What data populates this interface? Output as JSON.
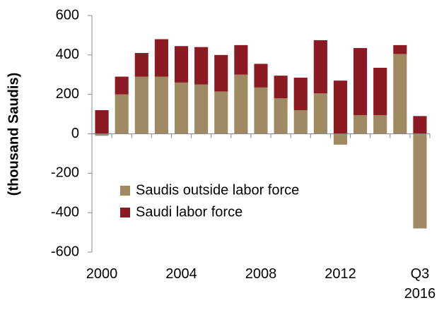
{
  "chart_data": {
    "type": "bar",
    "stacked": true,
    "y_label": "(thousand Saudis)",
    "categories": [
      "2000",
      null,
      null,
      null,
      "2004",
      null,
      null,
      null,
      "2008",
      null,
      null,
      null,
      "2012",
      null,
      null,
      null,
      "Q3\n2016"
    ],
    "series": [
      {
        "name": "Saudis outside labor force",
        "color": "#a08a64",
        "values": [
          -10,
          200,
          290,
          290,
          260,
          250,
          215,
          300,
          235,
          180,
          120,
          205,
          -55,
          95,
          95,
          405,
          -480
        ]
      },
      {
        "name": "Saudi labor force",
        "color": "#8b1a22",
        "values": [
          120,
          90,
          120,
          190,
          185,
          190,
          185,
          150,
          120,
          115,
          165,
          270,
          270,
          340,
          240,
          45,
          90
        ]
      }
    ],
    "ylim": [
      -600,
      600
    ],
    "yticks": [
      -600,
      -400,
      -200,
      0,
      200,
      400,
      600
    ],
    "grid": false
  }
}
